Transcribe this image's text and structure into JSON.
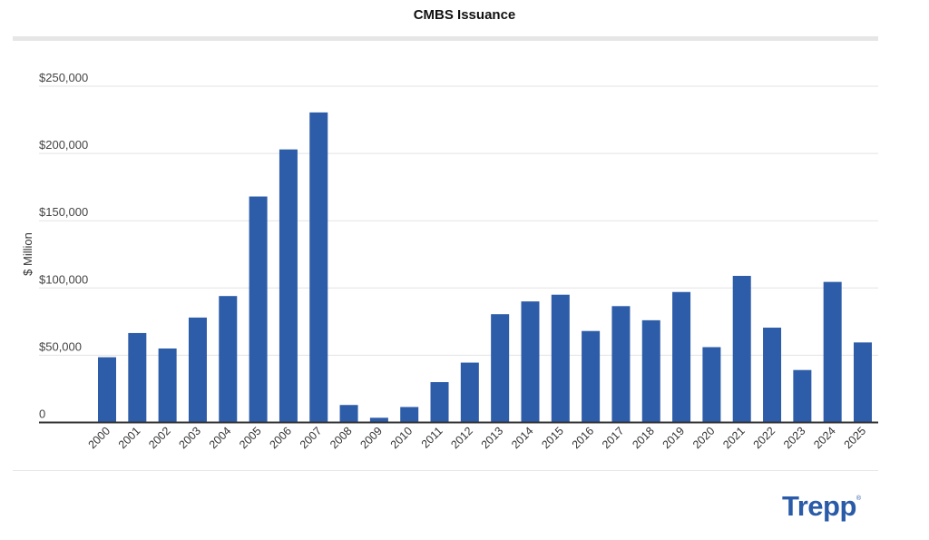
{
  "chart_data": {
    "type": "bar",
    "title": "CMBS Issuance",
    "ylabel": "$ Million",
    "xlabel": "",
    "ylim": [
      0,
      250000
    ],
    "yticks": [
      0,
      50000,
      100000,
      150000,
      200000,
      250000
    ],
    "ytick_labels": [
      "0",
      "$50,000",
      "$100,000",
      "$150,000",
      "$200,000",
      "$250,000"
    ],
    "grid": true,
    "bar_color": "#2d5ca8",
    "categories": [
      "2000",
      "2001",
      "2002",
      "2003",
      "2004",
      "2005",
      "2006",
      "2007",
      "2008",
      "2009",
      "2010",
      "2011",
      "2012",
      "2013",
      "2014",
      "2015",
      "2016",
      "2017",
      "2018",
      "2019",
      "2020",
      "2021",
      "2022",
      "2023",
      "2024",
      "2025"
    ],
    "values": [
      48500,
      66500,
      55000,
      78000,
      94000,
      168000,
      203000,
      230500,
      13000,
      3500,
      11500,
      30000,
      44500,
      80500,
      90000,
      95000,
      68000,
      86500,
      76000,
      97000,
      56000,
      109000,
      70500,
      39000,
      104500,
      59500
    ]
  },
  "logo": {
    "text": "Trepp",
    "mark": "®",
    "color": "#2a5ba8"
  }
}
